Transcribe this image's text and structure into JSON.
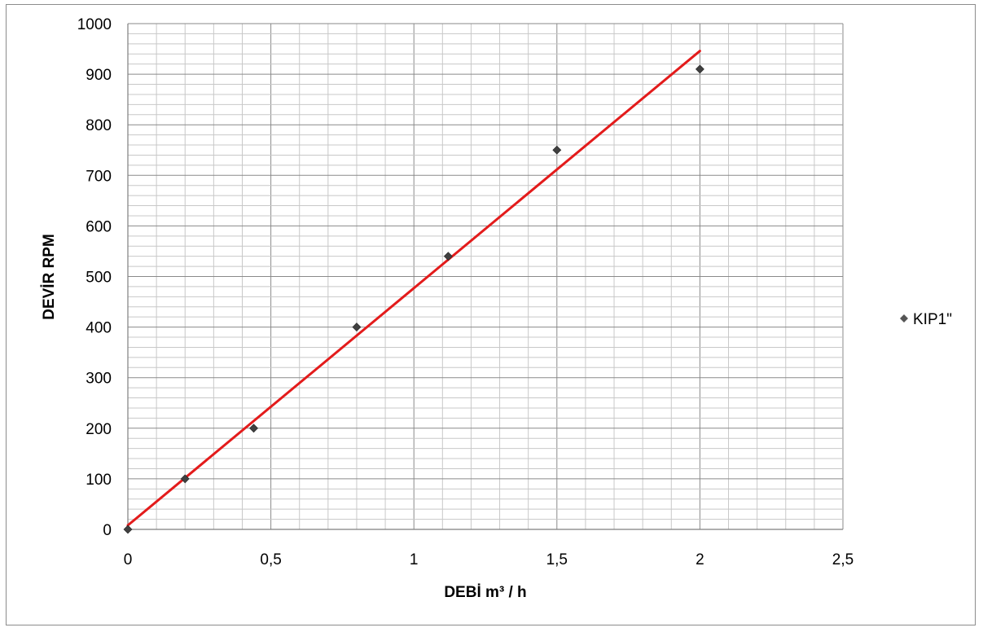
{
  "chart_data": {
    "type": "scatter",
    "title": "",
    "xlabel": "DEBİ m³ / h",
    "ylabel": "DEVİR RPM",
    "xlim": [
      0,
      2.5
    ],
    "ylim": [
      0,
      1000
    ],
    "x_ticks": [
      "0",
      "0,5",
      "1",
      "1,5",
      "2",
      "2,5"
    ],
    "y_ticks": [
      "0",
      "100",
      "200",
      "300",
      "400",
      "500",
      "600",
      "700",
      "800",
      "900",
      "1000"
    ],
    "grid": true,
    "legend_position": "right",
    "series": [
      {
        "name": "KIP1\"",
        "marker": "diamond",
        "color": "#404040",
        "x": [
          0,
          0.2,
          0.44,
          0.8,
          1.12,
          1.5,
          2.0
        ],
        "y": [
          0,
          100,
          200,
          400,
          540,
          750,
          910
        ]
      }
    ],
    "trendline": {
      "type": "linear",
      "color": "#e31b1b",
      "x": [
        0,
        2.0
      ],
      "y": [
        8,
        946
      ]
    }
  }
}
